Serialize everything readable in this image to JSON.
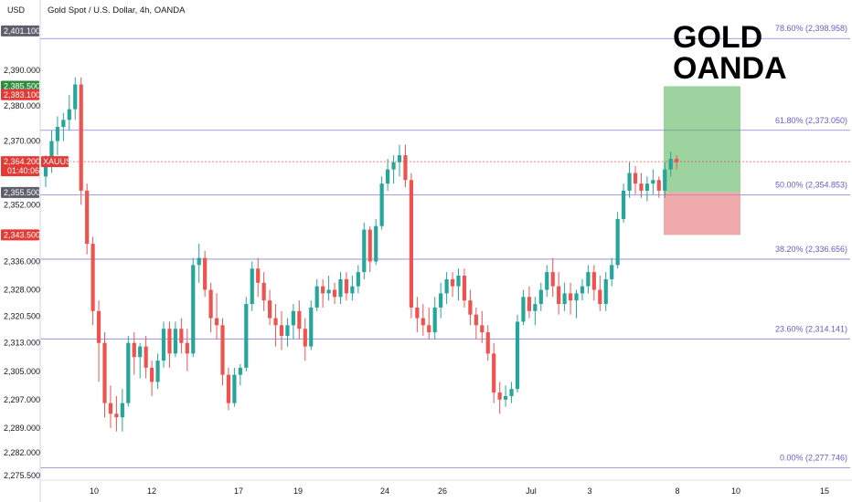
{
  "header": {
    "currency": "USD",
    "title": "Gold Spot / U.S. Dollar, 4h, OANDA"
  },
  "annotation": {
    "line1": "GOLD",
    "line2": "OANDA"
  },
  "colors": {
    "up": "#26a69a",
    "down": "#ef5350",
    "fib": "#8a7fd6",
    "fib_text": "#6a5acd",
    "target": "#4caf50",
    "stop": "#e57373"
  },
  "price_tags": [
    {
      "value": "2,401.100",
      "color": "#5d606b"
    },
    {
      "value": "2,385.500",
      "color": "#2e8b3d"
    },
    {
      "value": "2,383.100",
      "color": "#e53935"
    },
    {
      "value": "2,364.200",
      "sub": "01:40:06",
      "label": "XAUUSD",
      "color": "#e53935"
    },
    {
      "value": "2,355.500",
      "color": "#5d606b"
    },
    {
      "value": "2,343.500",
      "color": "#e53935"
    }
  ],
  "chart_data": {
    "type": "candlestick",
    "title": "Gold Spot / U.S. Dollar, 4h, OANDA",
    "y_unit": "USD",
    "ylim": [
      2271,
      2409
    ],
    "y_ticks": [
      "2,390.000",
      "2,380.000",
      "2,370.000",
      "2,352.000",
      "2,336.000",
      "2,328.000",
      "2,320.500",
      "2,313.000",
      "2,305.000",
      "2,297.000",
      "2,289.000",
      "2,282.000",
      "2,275.500"
    ],
    "x_ticks": [
      "10",
      "12",
      "17",
      "19",
      "24",
      "26",
      "Jul",
      "3",
      "8",
      "10",
      "15"
    ],
    "fib_levels": [
      {
        "label": "78.60% (2,398.958)",
        "value": 2398.958
      },
      {
        "label": "61.80% (2,373.050)",
        "value": 2373.05
      },
      {
        "label": "50.00% (2,354.853)",
        "value": 2354.853
      },
      {
        "label": "38.20% (2,336.656)",
        "value": 2336.656
      },
      {
        "label": "23.60% (2,314.141)",
        "value": 2314.141
      },
      {
        "label": "0.00% (2,277.746)",
        "value": 2277.746
      }
    ],
    "position": {
      "entry": 2355.5,
      "target": 2385.5,
      "stop": 2343.5
    },
    "current_price": 2364.2,
    "candles": [
      [
        2360,
        2366,
        2357,
        2364
      ],
      [
        2364,
        2373,
        2361,
        2370
      ],
      [
        2370,
        2377,
        2366,
        2374
      ],
      [
        2374,
        2378,
        2370,
        2376
      ],
      [
        2376,
        2383,
        2373,
        2379
      ],
      [
        2379,
        2388,
        2376,
        2386
      ],
      [
        2386,
        2388,
        2352,
        2356
      ],
      [
        2356,
        2358,
        2338,
        2341
      ],
      [
        2341,
        2343,
        2318,
        2322
      ],
      [
        2322,
        2325,
        2302,
        2313
      ],
      [
        2313,
        2316,
        2292,
        2296
      ],
      [
        2296,
        2301,
        2289,
        2293
      ],
      [
        2293,
        2298,
        2288,
        2292
      ],
      [
        2292,
        2300,
        2288,
        2296
      ],
      [
        2296,
        2315,
        2295,
        2313
      ],
      [
        2313,
        2316,
        2304,
        2309
      ],
      [
        2309,
        2313,
        2303,
        2312
      ],
      [
        2312,
        2315,
        2303,
        2306
      ],
      [
        2306,
        2308,
        2298,
        2302
      ],
      [
        2302,
        2310,
        2300,
        2308
      ],
      [
        2308,
        2319,
        2306,
        2317
      ],
      [
        2317,
        2319,
        2306,
        2310
      ],
      [
        2310,
        2319,
        2309,
        2317
      ],
      [
        2317,
        2320,
        2310,
        2313
      ],
      [
        2313,
        2317,
        2305,
        2310
      ],
      [
        2310,
        2337,
        2309,
        2335
      ],
      [
        2335,
        2341,
        2330,
        2337
      ],
      [
        2337,
        2339,
        2326,
        2328
      ],
      [
        2328,
        2330,
        2316,
        2320
      ],
      [
        2320,
        2327,
        2314,
        2318
      ],
      [
        2318,
        2320,
        2301,
        2304
      ],
      [
        2304,
        2306,
        2294,
        2296
      ],
      [
        2296,
        2306,
        2295,
        2304
      ],
      [
        2304,
        2307,
        2301,
        2306
      ],
      [
        2306,
        2326,
        2305,
        2324
      ],
      [
        2324,
        2336,
        2322,
        2334
      ],
      [
        2334,
        2337,
        2326,
        2330
      ],
      [
        2330,
        2333,
        2322,
        2325
      ],
      [
        2325,
        2328,
        2318,
        2320
      ],
      [
        2320,
        2324,
        2312,
        2318
      ],
      [
        2318,
        2322,
        2311,
        2315
      ],
      [
        2315,
        2320,
        2312,
        2318
      ],
      [
        2318,
        2324,
        2314,
        2322
      ],
      [
        2322,
        2325,
        2314,
        2317
      ],
      [
        2317,
        2320,
        2308,
        2312
      ],
      [
        2312,
        2325,
        2311,
        2323
      ],
      [
        2323,
        2331,
        2322,
        2329
      ],
      [
        2329,
        2331,
        2323,
        2327
      ],
      [
        2327,
        2332,
        2325,
        2328
      ],
      [
        2328,
        2330,
        2324,
        2326
      ],
      [
        2326,
        2333,
        2324,
        2331
      ],
      [
        2331,
        2333,
        2325,
        2327
      ],
      [
        2327,
        2332,
        2325,
        2329
      ],
      [
        2329,
        2335,
        2327,
        2333
      ],
      [
        2333,
        2347,
        2331,
        2345
      ],
      [
        2345,
        2346,
        2333,
        2336
      ],
      [
        2336,
        2348,
        2335,
        2346
      ],
      [
        2346,
        2360,
        2345,
        2358
      ],
      [
        2358,
        2365,
        2356,
        2362
      ],
      [
        2362,
        2366,
        2358,
        2364
      ],
      [
        2364,
        2369,
        2360,
        2366
      ],
      [
        2366,
        2369,
        2357,
        2359
      ],
      [
        2359,
        2361,
        2320,
        2323
      ],
      [
        2323,
        2326,
        2316,
        2320
      ],
      [
        2320,
        2324,
        2315,
        2318
      ],
      [
        2318,
        2323,
        2314,
        2316
      ],
      [
        2316,
        2326,
        2314,
        2323
      ],
      [
        2323,
        2330,
        2320,
        2327
      ],
      [
        2327,
        2333,
        2324,
        2331
      ],
      [
        2331,
        2333,
        2326,
        2329
      ],
      [
        2329,
        2334,
        2325,
        2332
      ],
      [
        2332,
        2334,
        2323,
        2325
      ],
      [
        2325,
        2328,
        2318,
        2321
      ],
      [
        2321,
        2323,
        2314,
        2318
      ],
      [
        2318,
        2322,
        2313,
        2316
      ],
      [
        2316,
        2318,
        2308,
        2310
      ],
      [
        2310,
        2313,
        2296,
        2299
      ],
      [
        2299,
        2302,
        2293,
        2297
      ],
      [
        2297,
        2301,
        2295,
        2298
      ],
      [
        2298,
        2302,
        2296,
        2300
      ],
      [
        2300,
        2321,
        2299,
        2319
      ],
      [
        2319,
        2328,
        2318,
        2326
      ],
      [
        2326,
        2329,
        2320,
        2322
      ],
      [
        2322,
        2326,
        2318,
        2324
      ],
      [
        2324,
        2330,
        2322,
        2328
      ],
      [
        2328,
        2335,
        2326,
        2333
      ],
      [
        2333,
        2337,
        2326,
        2329
      ],
      [
        2329,
        2333,
        2321,
        2324
      ],
      [
        2324,
        2330,
        2322,
        2327
      ],
      [
        2327,
        2330,
        2321,
        2325
      ],
      [
        2325,
        2328,
        2320,
        2327
      ],
      [
        2327,
        2331,
        2325,
        2329
      ],
      [
        2329,
        2335,
        2327,
        2333
      ],
      [
        2333,
        2335,
        2325,
        2328
      ],
      [
        2328,
        2332,
        2322,
        2324
      ],
      [
        2324,
        2333,
        2322,
        2331
      ],
      [
        2331,
        2337,
        2329,
        2335
      ],
      [
        2335,
        2350,
        2334,
        2348
      ],
      [
        2348,
        2358,
        2347,
        2356
      ],
      [
        2356,
        2364,
        2354,
        2361
      ],
      [
        2361,
        2363,
        2355,
        2358
      ],
      [
        2358,
        2361,
        2354,
        2356
      ],
      [
        2356,
        2360,
        2353,
        2358
      ],
      [
        2358,
        2362,
        2355,
        2359
      ],
      [
        2359,
        2360,
        2354,
        2356
      ],
      [
        2356,
        2364,
        2354,
        2362
      ],
      [
        2362,
        2367,
        2360,
        2365
      ],
      [
        2365,
        2366,
        2362,
        2364
      ]
    ]
  }
}
